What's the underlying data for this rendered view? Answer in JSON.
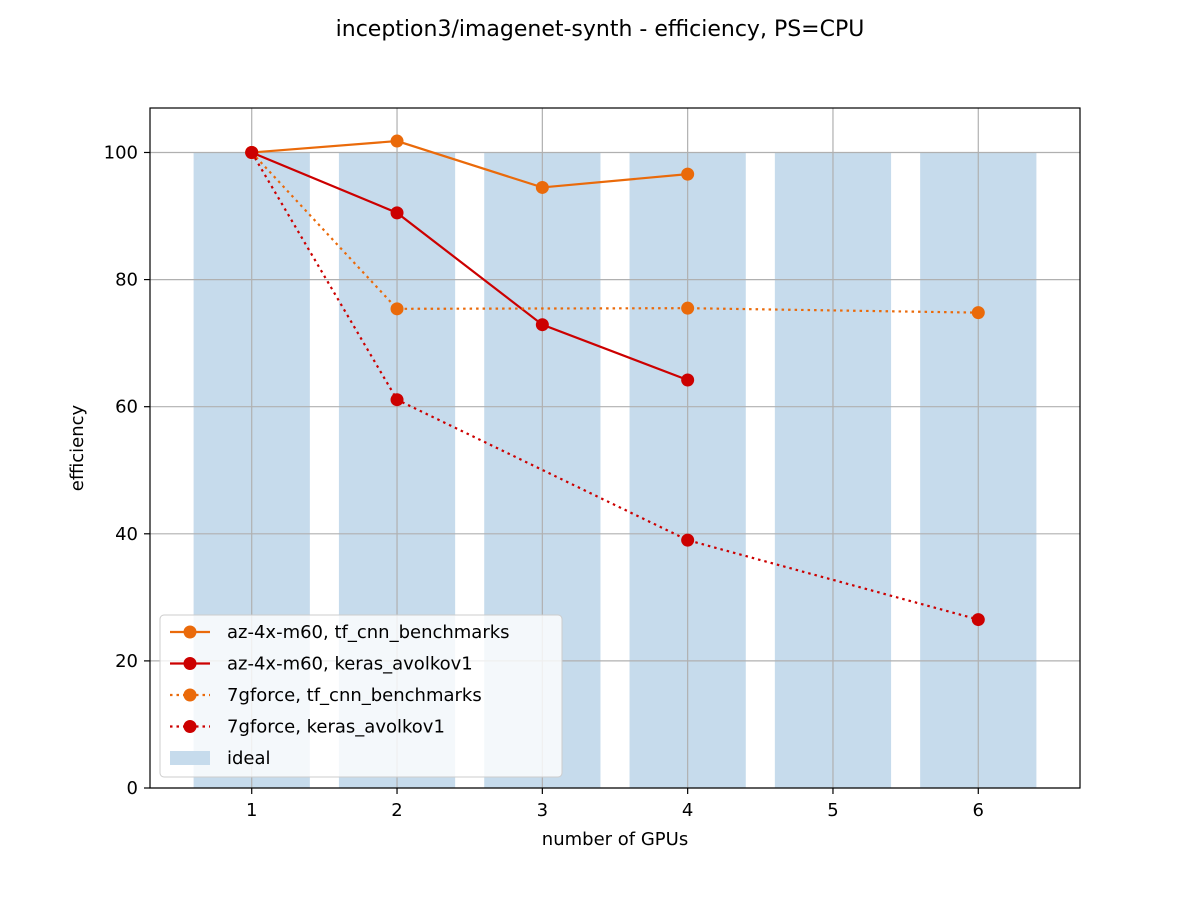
{
  "chart_data": {
    "type": "line",
    "title": "inception3/imagenet-synth - efficiency, PS=CPU",
    "xlabel": "number of GPUs",
    "ylabel": "efficiency",
    "xlim": [
      0.3,
      6.7
    ],
    "ylim": [
      0,
      107
    ],
    "xticks": [
      1,
      2,
      3,
      4,
      5,
      6
    ],
    "yticks": [
      0,
      20,
      40,
      60,
      80,
      100
    ],
    "grid": true,
    "legend_position": "lower-left",
    "ideal": {
      "name": "ideal",
      "x": [
        1,
        2,
        3,
        4,
        5,
        6
      ],
      "values": [
        100,
        100,
        100,
        100,
        100,
        100
      ],
      "color": "#c6dbec"
    },
    "series": [
      {
        "name": "az-4x-m60, tf_cnn_benchmarks",
        "x": [
          1,
          2,
          3,
          4
        ],
        "values": [
          100,
          101.8,
          94.5,
          96.6
        ],
        "color": "#ea6a0a",
        "style": "solid"
      },
      {
        "name": "az-4x-m60, keras_avolkov1",
        "x": [
          1,
          2,
          3,
          4
        ],
        "values": [
          100,
          90.5,
          72.9,
          64.2
        ],
        "color": "#cc0000",
        "style": "solid"
      },
      {
        "name": "7gforce, tf_cnn_benchmarks",
        "x": [
          1,
          2,
          4,
          6
        ],
        "values": [
          100,
          75.4,
          75.5,
          74.8
        ],
        "color": "#ea6a0a",
        "style": "dotted"
      },
      {
        "name": "7gforce, keras_avolkov1",
        "x": [
          1,
          2,
          4,
          6
        ],
        "values": [
          100,
          61.1,
          39.0,
          26.5
        ],
        "color": "#cc0000",
        "style": "dotted"
      }
    ]
  }
}
